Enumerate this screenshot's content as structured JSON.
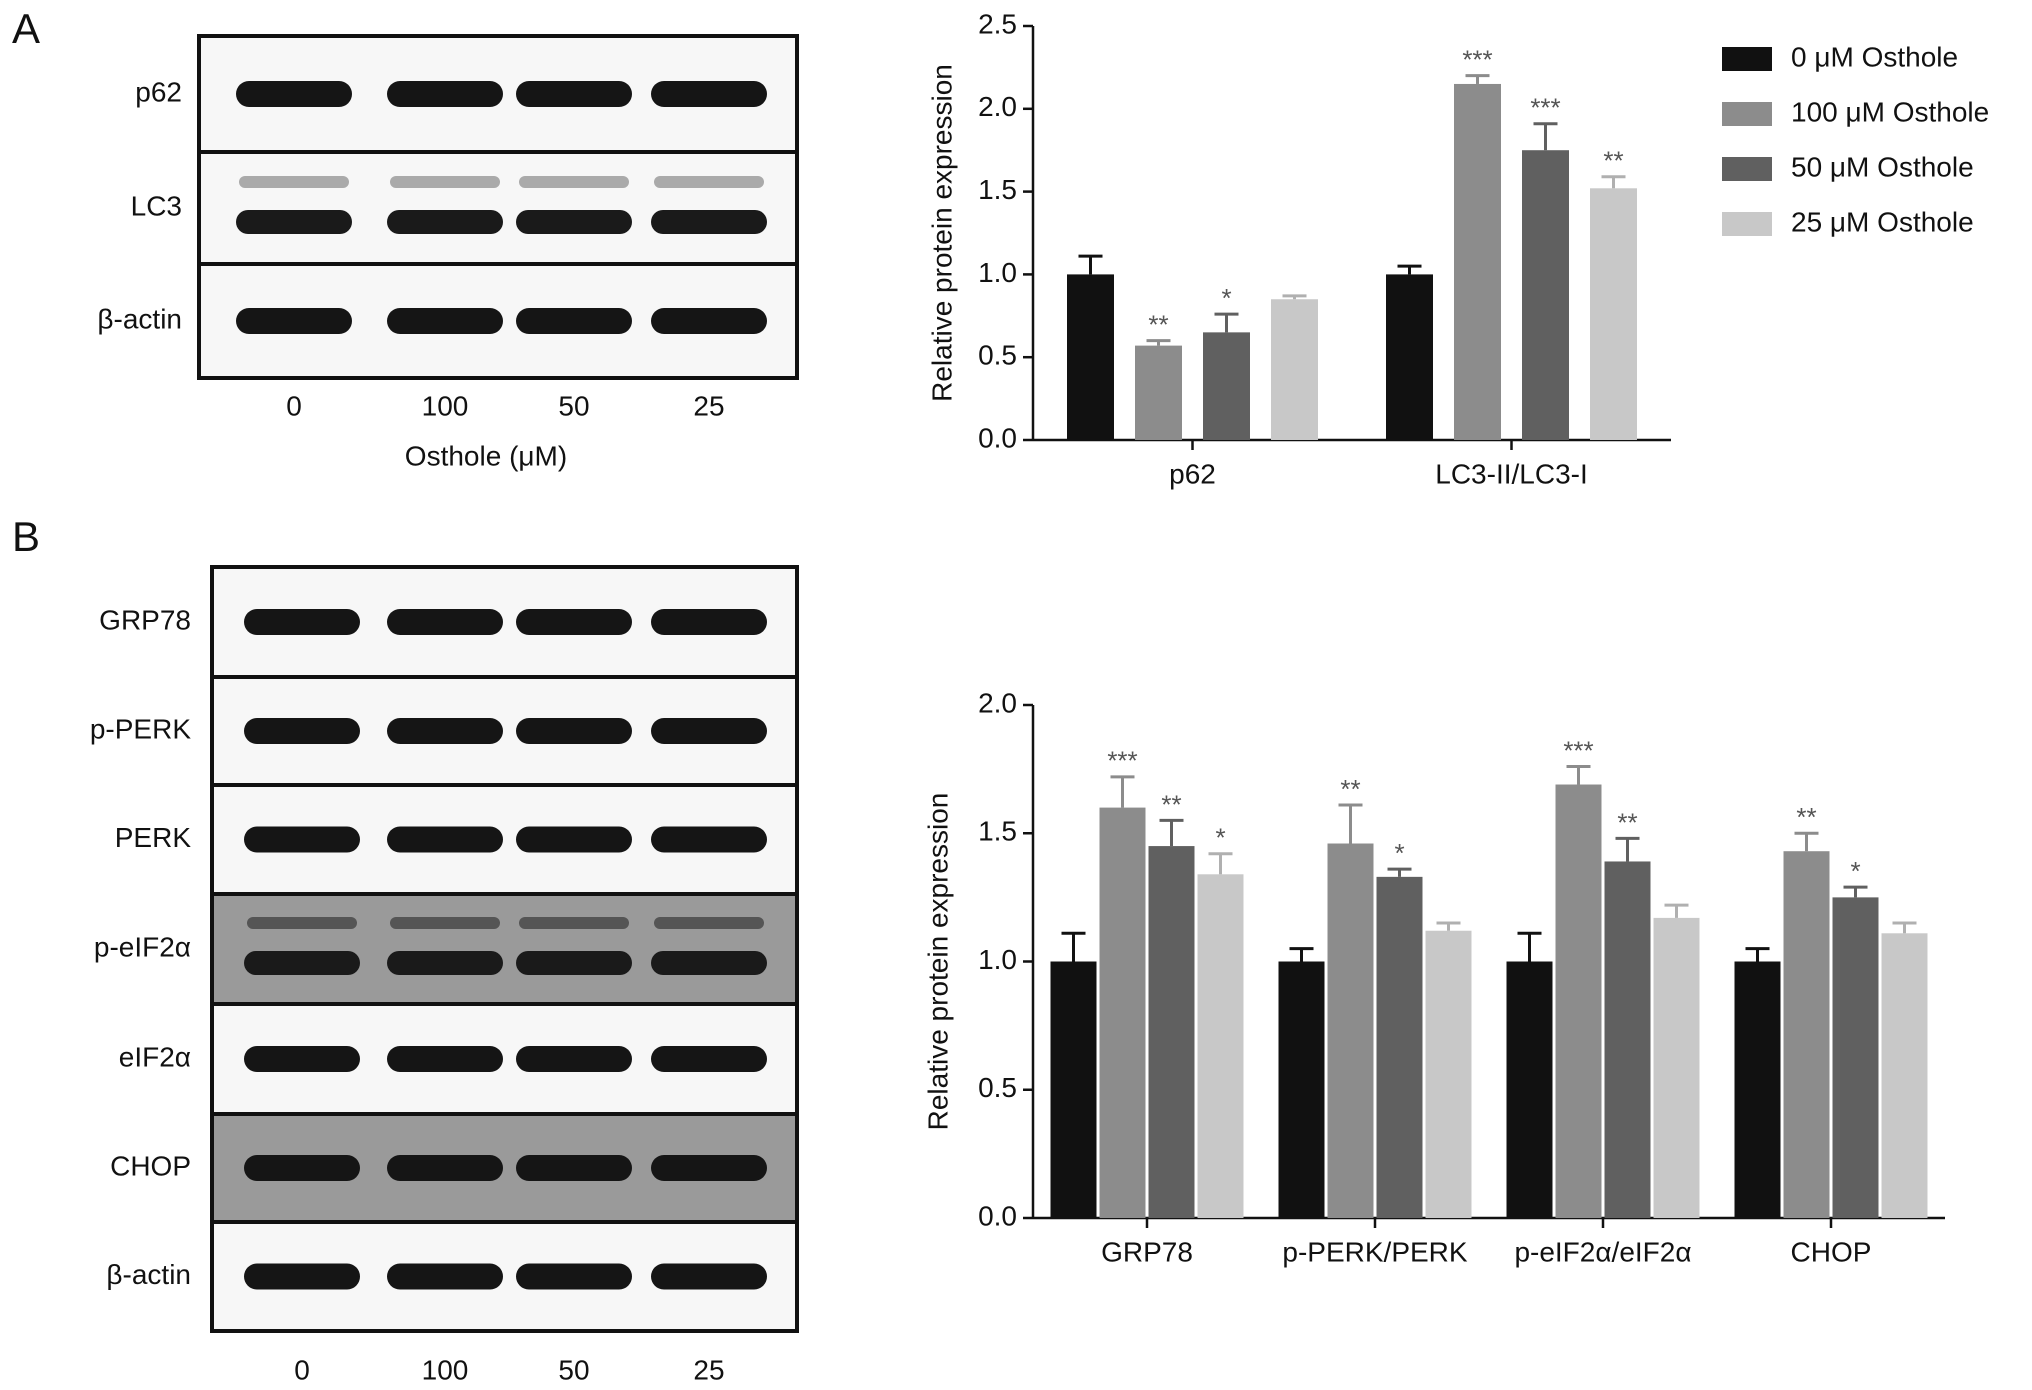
{
  "figure": {
    "panel_a": {
      "letter": "A",
      "blot": {
        "rows": [
          "p62",
          "LC3",
          "β-actin"
        ],
        "lanes": [
          "0",
          "100",
          "50",
          "25"
        ],
        "xlabel": "Osthole (μM)"
      }
    },
    "panel_b": {
      "letter": "B",
      "blot": {
        "rows": [
          "GRP78",
          "p-PERK",
          "PERK",
          "p-eIF2α",
          "eIF2α",
          "CHOP",
          "β-actin"
        ],
        "lanes": [
          "0",
          "100",
          "50",
          "25"
        ]
      }
    }
  },
  "chart_data": [
    {
      "type": "bar",
      "ylabel": "Relative protein expression",
      "legend": "right",
      "categories": [
        "p62",
        "LC3-II/LC3-I"
      ],
      "ylim": [
        0,
        2.5
      ],
      "yticks": [
        {
          "value": 0,
          "label": "0.0"
        },
        0.5,
        {
          "value": 1,
          "label": "1.0"
        },
        1.5,
        {
          "value": 2,
          "label": "2.0"
        },
        2.5
      ],
      "series": [
        {
          "name": "0 μM Osthole",
          "color": "#111111",
          "values": [
            1.0,
            1.0
          ],
          "errors": [
            0.11,
            0.05
          ],
          "stars": [
            null,
            null
          ]
        },
        {
          "name": "100 μM Osthole",
          "color": "#8c8c8c",
          "values": [
            0.57,
            2.15
          ],
          "errors": [
            0.03,
            0.05
          ],
          "stars": [
            "**",
            "***"
          ]
        },
        {
          "name": "50 μM Osthole",
          "color": "#606060",
          "values": [
            0.65,
            1.75
          ],
          "errors": [
            0.11,
            0.16
          ],
          "stars": [
            "*",
            "***"
          ]
        },
        {
          "name": "25 μM Osthole",
          "color": "#c8c8c8",
          "values": [
            0.85,
            1.52
          ],
          "errors": [
            0.02,
            0.07
          ],
          "stars": [
            null,
            "**"
          ]
        }
      ]
    },
    {
      "type": "bar",
      "ylabel": "Relative protein expression",
      "categories": [
        "GRP78",
        "p-PERK/PERK",
        "p-eIF2α/eIF2α",
        "CHOP"
      ],
      "ylim": [
        0,
        2.0
      ],
      "yticks": [
        {
          "value": 0,
          "label": "0.0"
        },
        0.5,
        {
          "value": 1,
          "label": "1.0"
        },
        1.5,
        {
          "value": 2,
          "label": "2.0"
        }
      ],
      "series": [
        {
          "color": "#111111",
          "values": [
            1.0,
            1.0,
            1.0,
            1.0
          ],
          "errors": [
            0.11,
            0.05,
            0.11,
            0.05
          ],
          "stars": [
            null,
            null,
            null,
            null
          ]
        },
        {
          "color": "#8c8c8c",
          "values": [
            1.6,
            1.46,
            1.69,
            1.43
          ],
          "errors": [
            0.12,
            0.15,
            0.07,
            0.07
          ],
          "stars": [
            "***",
            "**",
            "***",
            "**"
          ]
        },
        {
          "color": "#606060",
          "values": [
            1.45,
            1.33,
            1.39,
            1.25
          ],
          "errors": [
            0.1,
            0.03,
            0.09,
            0.04
          ],
          "stars": [
            "**",
            "*",
            "**",
            "*"
          ]
        },
        {
          "color": "#c8c8c8",
          "values": [
            1.34,
            1.12,
            1.17,
            1.11
          ],
          "errors": [
            0.08,
            0.03,
            0.05,
            0.04
          ],
          "stars": [
            "*",
            null,
            null,
            null
          ]
        }
      ]
    }
  ]
}
